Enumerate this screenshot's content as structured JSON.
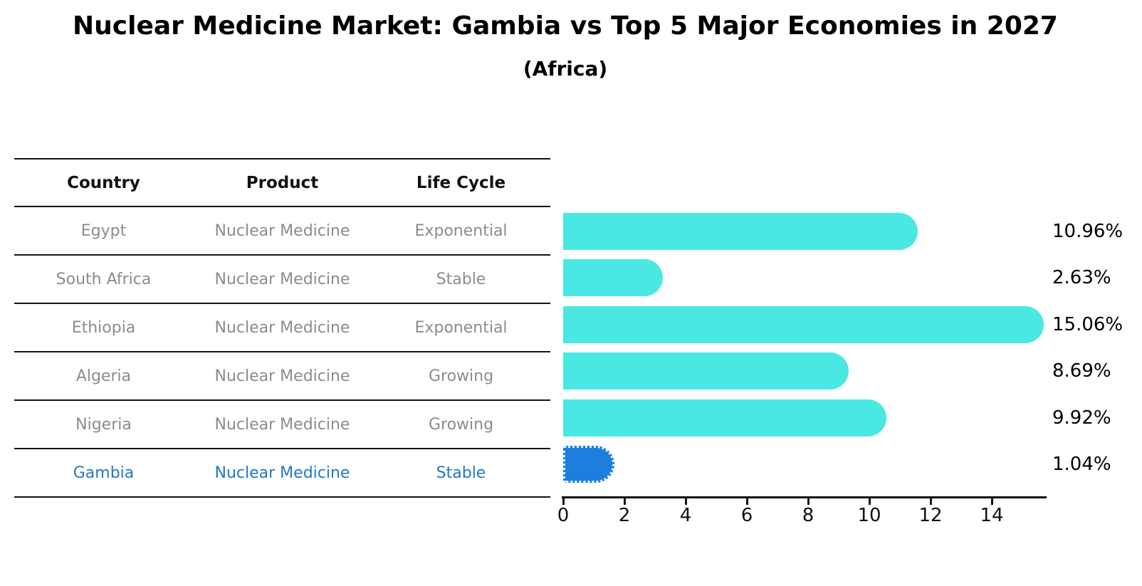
{
  "title": "Nuclear Medicine Market: Gambia vs Top 5 Major Economies in 2027",
  "subtitle": "(Africa)",
  "table": {
    "headers": [
      "Country",
      "Product",
      "Life Cycle"
    ],
    "rows": [
      {
        "country": "Egypt",
        "product": "Nuclear Medicine",
        "life_cycle": "Exponential",
        "highlight": false
      },
      {
        "country": "South Africa",
        "product": "Nuclear Medicine",
        "life_cycle": "Stable",
        "highlight": false
      },
      {
        "country": "Ethiopia",
        "product": "Nuclear Medicine",
        "life_cycle": "Exponential",
        "highlight": false
      },
      {
        "country": "Algeria",
        "product": "Nuclear Medicine",
        "life_cycle": "Growing",
        "highlight": false
      },
      {
        "country": "Nigeria",
        "product": "Nuclear Medicine",
        "life_cycle": "Growing",
        "highlight": false
      },
      {
        "country": "Gambia",
        "product": "Nuclear Medicine",
        "life_cycle": "Stable",
        "highlight": true
      }
    ]
  },
  "chart_data": {
    "type": "bar",
    "orientation": "horizontal",
    "categories": [
      "Egypt",
      "South Africa",
      "Ethiopia",
      "Algeria",
      "Nigeria",
      "Gambia"
    ],
    "values": [
      10.96,
      2.63,
      15.06,
      8.69,
      9.92,
      1.04
    ],
    "value_labels": [
      "10.96%",
      "2.63%",
      "15.06%",
      "8.69%",
      "9.92%",
      "1.04%"
    ],
    "x_ticks": [
      "0",
      "2",
      "4",
      "6",
      "8",
      "10",
      "12",
      "14"
    ],
    "xlim": [
      0,
      15.8
    ],
    "grid": false,
    "legend": false,
    "highlight_index": 5,
    "bar_color": "#4AE8E2",
    "highlight_bar_color": "#1E7EDE",
    "highlight_text_color": "#2278C8",
    "table_text_color": "#8C8C8C",
    "axis_color": "#141414"
  }
}
